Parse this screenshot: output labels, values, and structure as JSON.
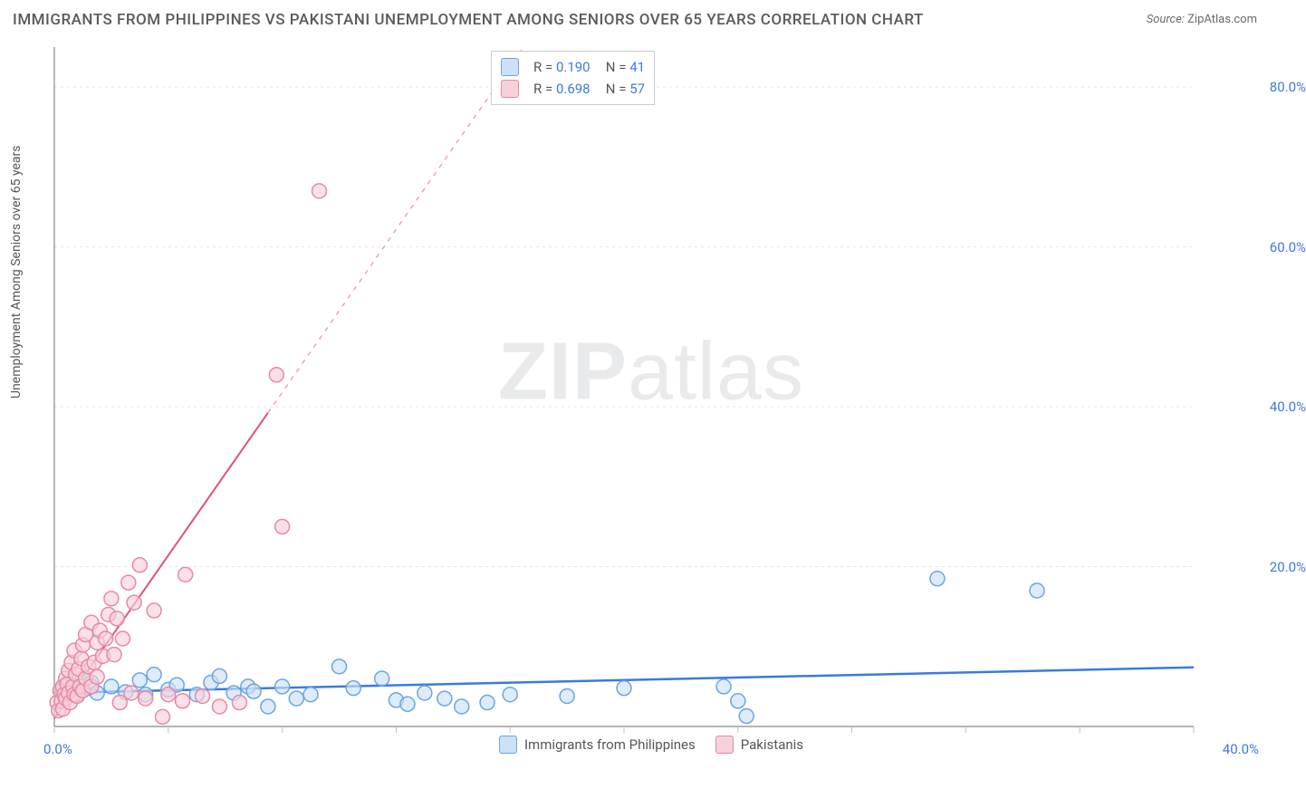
{
  "title": "IMMIGRANTS FROM PHILIPPINES VS PAKISTANI UNEMPLOYMENT AMONG SENIORS OVER 65 YEARS CORRELATION CHART",
  "source_label": "Source:",
  "source_value": "ZipAtlas.com",
  "y_axis_label": "Unemployment Among Seniors over 65 years",
  "watermark_bold": "ZIP",
  "watermark_light": "atlas",
  "x_origin_label": "0.0%",
  "x_max_label": "40.0%",
  "legend_top": [
    {
      "color_fill": "#cde0f5",
      "color_stroke": "#6aa5e4",
      "r_label": "R =",
      "r_value": "0.190",
      "n_label": "N =",
      "n_value": "41"
    },
    {
      "color_fill": "#f7d0da",
      "color_stroke": "#e68aa3",
      "r_label": "R =",
      "r_value": "0.698",
      "n_label": "N =",
      "n_value": "57"
    }
  ],
  "bottom_legend": [
    {
      "label": "Immigrants from Philippines",
      "fill": "#cde0f5",
      "stroke": "#6aa5e4"
    },
    {
      "label": "Pakistanis",
      "fill": "#f7d0da",
      "stroke": "#e68aa3"
    }
  ],
  "chart": {
    "type": "scatter",
    "background_color": "#ffffff",
    "grid_color": "#e6e6e6",
    "axis_color": "#888888",
    "tick_color": "#bfbfbf",
    "xlim": [
      0,
      40
    ],
    "ylim": [
      0,
      85
    ],
    "y_ticks": [
      20,
      40,
      60,
      80
    ],
    "y_tick_labels": [
      "20.0%",
      "40.0%",
      "60.0%",
      "80.0%"
    ],
    "x_ticks": [
      0,
      4,
      8,
      12,
      16,
      20,
      24,
      28,
      32,
      36,
      40
    ],
    "marker_radius": 8,
    "marker_opacity": 0.65,
    "series": [
      {
        "name": "philippines",
        "fill": "#cde0f5",
        "stroke": "#6aa5e4",
        "trend": {
          "slope": 0.08,
          "intercept": 4.2,
          "dash": "none",
          "color": "#3a7adf",
          "width": 2.5
        },
        "points": [
          [
            0.3,
            4.5
          ],
          [
            0.5,
            5.2
          ],
          [
            0.8,
            4.0
          ],
          [
            1.0,
            6.0
          ],
          [
            1.2,
            4.8
          ],
          [
            1.3,
            5.5
          ],
          [
            1.5,
            4.2
          ],
          [
            2.0,
            5.0
          ],
          [
            2.5,
            4.3
          ],
          [
            3.0,
            5.8
          ],
          [
            3.2,
            4.0
          ],
          [
            3.5,
            6.5
          ],
          [
            4.0,
            4.6
          ],
          [
            4.3,
            5.2
          ],
          [
            5.0,
            4.0
          ],
          [
            5.5,
            5.5
          ],
          [
            5.8,
            6.3
          ],
          [
            6.3,
            4.2
          ],
          [
            6.8,
            5.0
          ],
          [
            7.0,
            4.4
          ],
          [
            7.5,
            2.5
          ],
          [
            8.0,
            5.0
          ],
          [
            8.5,
            3.5
          ],
          [
            9.0,
            4.0
          ],
          [
            10.0,
            7.5
          ],
          [
            10.5,
            4.8
          ],
          [
            11.5,
            6.0
          ],
          [
            12.0,
            3.3
          ],
          [
            12.4,
            2.8
          ],
          [
            13.0,
            4.2
          ],
          [
            13.7,
            3.5
          ],
          [
            14.3,
            2.5
          ],
          [
            15.2,
            3.0
          ],
          [
            16.0,
            4.0
          ],
          [
            18.0,
            3.8
          ],
          [
            20.0,
            4.8
          ],
          [
            23.5,
            5.0
          ],
          [
            24.0,
            3.2
          ],
          [
            24.3,
            1.3
          ],
          [
            31.0,
            18.5
          ],
          [
            34.5,
            17.0
          ]
        ]
      },
      {
        "name": "pakistanis",
        "fill": "#f7d0da",
        "stroke": "#e68aa3",
        "trend": {
          "slope": 5.1,
          "intercept": 1.0,
          "dash": "solid_then_dashed",
          "dash_break_x": 7.5,
          "color": "#e54f77",
          "width": 2
        },
        "points": [
          [
            0.1,
            3.0
          ],
          [
            0.15,
            2.0
          ],
          [
            0.2,
            4.5
          ],
          [
            0.25,
            3.2
          ],
          [
            0.3,
            5.0
          ],
          [
            0.3,
            2.2
          ],
          [
            0.35,
            4.0
          ],
          [
            0.4,
            6.0
          ],
          [
            0.4,
            3.5
          ],
          [
            0.45,
            5.3
          ],
          [
            0.5,
            4.2
          ],
          [
            0.5,
            7.0
          ],
          [
            0.55,
            3.0
          ],
          [
            0.6,
            8.0
          ],
          [
            0.65,
            5.0
          ],
          [
            0.7,
            4.0
          ],
          [
            0.7,
            9.5
          ],
          [
            0.75,
            6.5
          ],
          [
            0.8,
            3.8
          ],
          [
            0.85,
            7.2
          ],
          [
            0.9,
            5.0
          ],
          [
            0.95,
            8.5
          ],
          [
            1.0,
            4.5
          ],
          [
            1.0,
            10.2
          ],
          [
            1.1,
            6.0
          ],
          [
            1.1,
            11.5
          ],
          [
            1.2,
            7.5
          ],
          [
            1.3,
            5.0
          ],
          [
            1.3,
            13.0
          ],
          [
            1.4,
            8.0
          ],
          [
            1.5,
            10.5
          ],
          [
            1.5,
            6.2
          ],
          [
            1.6,
            12.0
          ],
          [
            1.7,
            8.8
          ],
          [
            1.8,
            11.0
          ],
          [
            1.9,
            14.0
          ],
          [
            2.0,
            16.0
          ],
          [
            2.1,
            9.0
          ],
          [
            2.2,
            13.5
          ],
          [
            2.4,
            11.0
          ],
          [
            2.6,
            18.0
          ],
          [
            2.8,
            15.5
          ],
          [
            3.0,
            20.2
          ],
          [
            3.5,
            14.5
          ],
          [
            2.3,
            3.0
          ],
          [
            2.7,
            4.2
          ],
          [
            3.2,
            3.5
          ],
          [
            3.8,
            1.2
          ],
          [
            4.6,
            19.0
          ],
          [
            4.0,
            4.0
          ],
          [
            4.5,
            3.2
          ],
          [
            5.2,
            3.8
          ],
          [
            5.8,
            2.5
          ],
          [
            6.5,
            3.0
          ],
          [
            8.0,
            25.0
          ],
          [
            7.8,
            44.0
          ],
          [
            9.3,
            67.0
          ]
        ]
      }
    ]
  }
}
